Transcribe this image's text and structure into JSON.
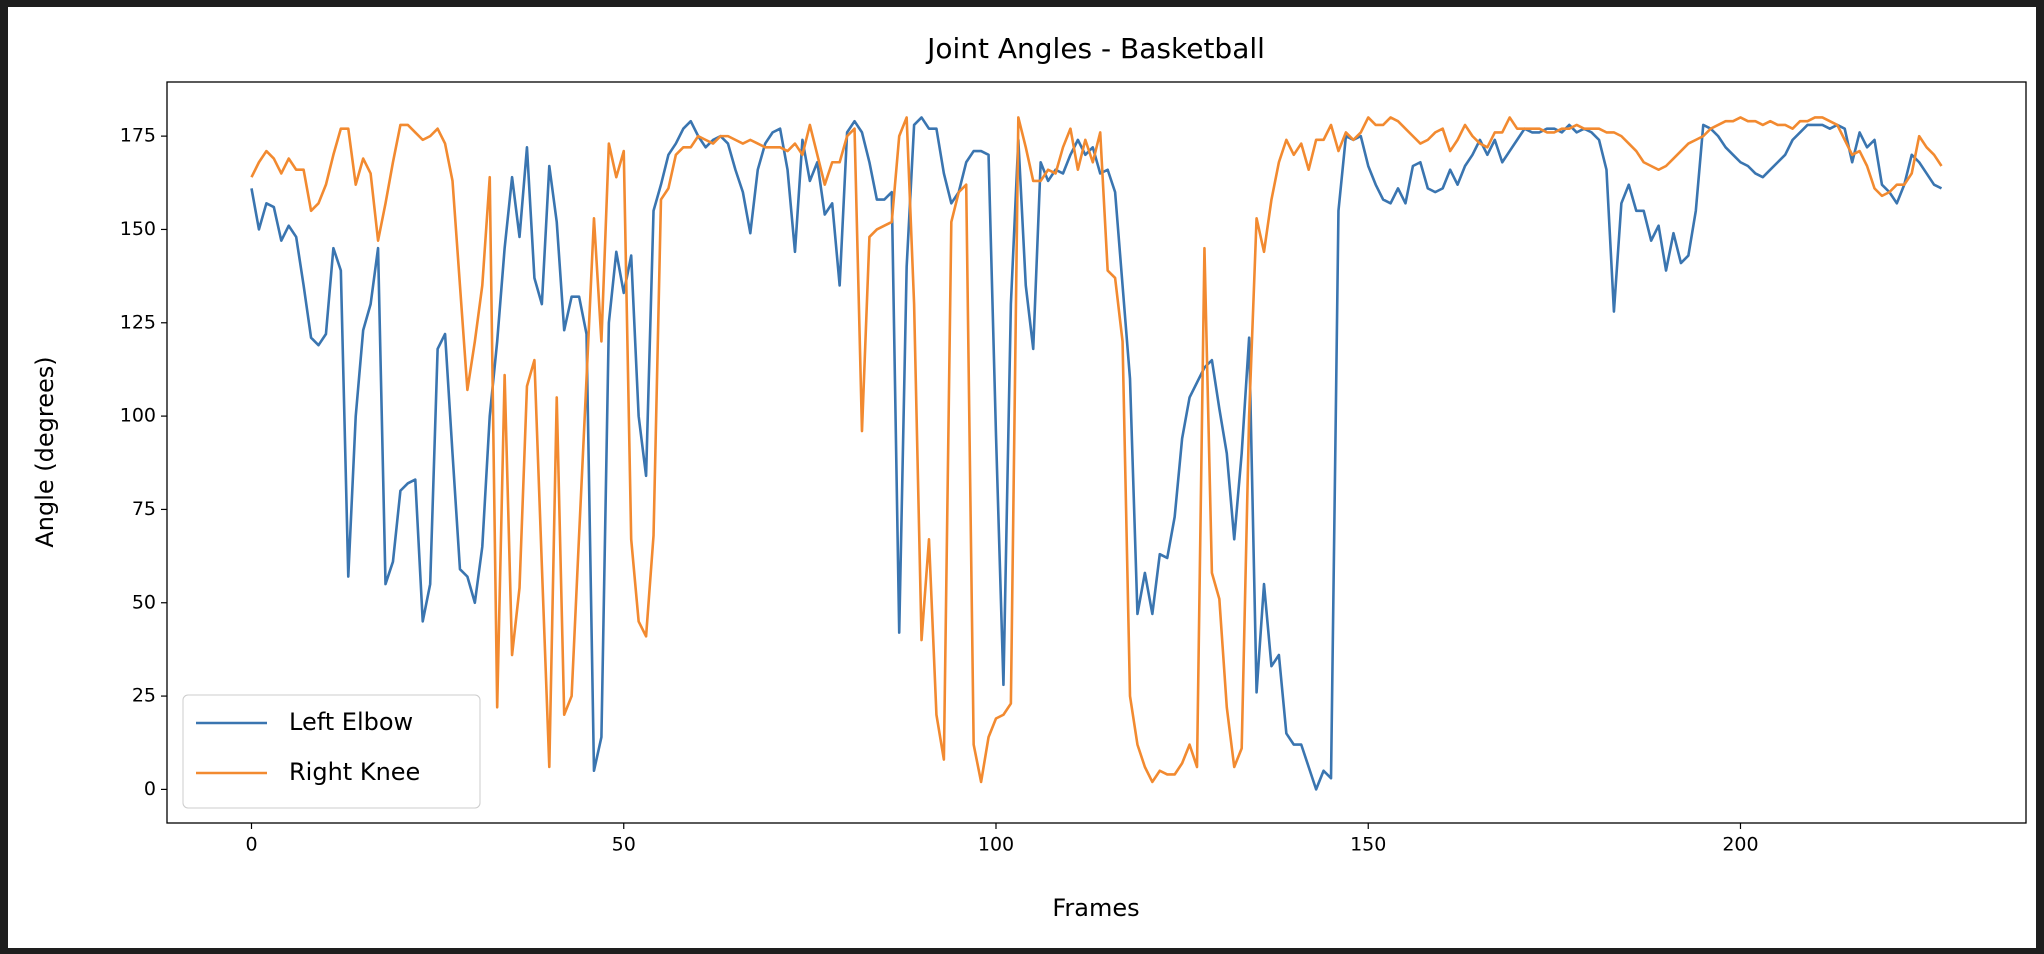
{
  "chart_data": {
    "type": "line",
    "title": "Joint Angles - Basketball",
    "x_label": "Frames",
    "y_label": "Angle (degrees)",
    "legend": "lower left",
    "grid": false,
    "xlim": [
      -11.35,
      238.35
    ],
    "xticks": [
      0,
      50,
      100,
      150,
      200
    ],
    "ylim": [
      -9,
      189.5
    ],
    "yticks": [
      0,
      25,
      50,
      75,
      100,
      125,
      150,
      175
    ],
    "x": [
      0,
      1,
      2,
      3,
      4,
      5,
      6,
      7,
      8,
      9,
      10,
      11,
      12,
      13,
      14,
      15,
      16,
      17,
      18,
      19,
      20,
      21,
      22,
      23,
      24,
      25,
      26,
      27,
      28,
      29,
      30,
      31,
      32,
      33,
      34,
      35,
      36,
      37,
      38,
      39,
      40,
      41,
      42,
      43,
      44,
      45,
      46,
      47,
      48,
      49,
      50,
      51,
      52,
      53,
      54,
      55,
      56,
      57,
      58,
      59,
      60,
      61,
      62,
      63,
      64,
      65,
      66,
      67,
      68,
      69,
      70,
      71,
      72,
      73,
      74,
      75,
      76,
      77,
      78,
      79,
      80,
      81,
      82,
      83,
      84,
      85,
      86,
      87,
      88,
      89,
      90,
      91,
      92,
      93,
      94,
      95,
      96,
      97,
      98,
      99,
      100,
      101,
      102,
      103,
      104,
      105,
      106,
      107,
      108,
      109,
      110,
      111,
      112,
      113,
      114,
      115,
      116,
      117,
      118,
      119,
      120,
      121,
      122,
      123,
      124,
      125,
      126,
      127,
      128,
      129,
      130,
      131,
      132,
      133,
      134,
      135,
      136,
      137,
      138,
      139,
      140,
      141,
      142,
      143,
      144,
      145,
      146,
      147,
      148,
      149,
      150,
      151,
      152,
      153,
      154,
      155,
      156,
      157,
      158,
      159,
      160,
      161,
      162,
      163,
      164,
      165,
      166,
      167,
      168,
      169,
      170,
      171,
      172,
      173,
      174,
      175,
      176,
      177,
      178,
      179,
      180,
      181,
      182,
      183,
      184,
      185,
      186,
      187,
      188,
      189,
      190,
      191,
      192,
      193,
      194,
      195,
      196,
      197,
      198,
      199,
      200,
      201,
      202,
      203,
      204,
      205,
      206,
      207,
      208,
      209,
      210,
      211,
      212,
      213,
      214,
      215,
      216,
      217,
      218,
      219,
      220,
      221,
      222,
      223,
      224,
      225,
      226,
      227
    ],
    "series": [
      {
        "name": "Left Elbow",
        "color": "#3a75b0",
        "values": [
          161,
          150,
          157,
          156,
          147,
          151,
          148,
          135,
          121,
          119,
          122,
          145,
          139,
          57,
          100,
          123,
          130,
          145,
          55,
          61,
          80,
          82,
          83,
          45,
          55,
          118,
          122,
          90,
          59,
          57,
          50,
          65,
          100,
          120,
          145,
          164,
          148,
          172,
          137,
          130,
          167,
          152,
          123,
          132,
          132,
          122,
          5,
          14,
          125,
          144,
          133,
          143,
          100,
          84,
          155,
          162,
          170,
          173,
          177,
          179,
          175,
          172,
          174,
          175,
          173,
          166,
          160,
          149,
          166,
          173,
          176,
          177,
          166,
          144,
          174,
          163,
          168,
          154,
          157,
          135,
          176,
          179,
          176,
          168,
          158,
          158,
          160,
          42,
          140,
          178,
          180,
          177,
          177,
          165,
          157,
          160,
          168,
          171,
          171,
          170,
          95,
          28,
          130,
          174,
          135,
          118,
          168,
          163,
          166,
          165,
          170,
          174,
          170,
          172,
          165,
          166,
          160,
          135,
          110,
          47,
          58,
          47,
          63,
          62,
          73,
          94,
          105,
          109,
          113,
          115,
          102,
          90,
          67,
          90,
          121,
          26,
          55,
          33,
          36,
          15,
          12,
          12,
          6,
          0,
          5,
          3,
          155,
          175,
          174,
          175,
          167,
          162,
          158,
          157,
          161,
          157,
          167,
          168,
          161,
          160,
          161,
          166,
          162,
          167,
          170,
          174,
          170,
          174,
          168,
          171,
          174,
          177,
          176,
          176,
          177,
          177,
          176,
          178,
          176,
          177,
          176,
          174,
          166,
          128,
          157,
          162,
          155,
          155,
          147,
          151,
          139,
          149,
          141,
          143,
          155,
          178,
          177,
          175,
          172,
          170,
          168,
          167,
          165,
          164,
          166,
          168,
          170,
          174,
          176,
          178,
          178,
          178,
          177,
          178,
          177,
          168,
          176,
          172,
          174,
          162,
          160,
          157,
          162,
          170,
          168,
          165,
          162,
          161
        ]
      },
      {
        "name": "Right Knee",
        "color": "#f28a30",
        "values": [
          164,
          168,
          171,
          169,
          165,
          169,
          166,
          166,
          155,
          157,
          162,
          170,
          177,
          177,
          162,
          169,
          165,
          147,
          157,
          168,
          178,
          178,
          176,
          174,
          175,
          177,
          173,
          163,
          135,
          107,
          120,
          135,
          164,
          22,
          111,
          36,
          54,
          108,
          115,
          60,
          6,
          105,
          20,
          25,
          68,
          110,
          153,
          120,
          173,
          164,
          171,
          67,
          45,
          41,
          68,
          158,
          161,
          170,
          172,
          172,
          175,
          174,
          173,
          175,
          175,
          174,
          173,
          174,
          173,
          172,
          172,
          172,
          171,
          173,
          170,
          178,
          170,
          162,
          168,
          168,
          175,
          177,
          96,
          148,
          150,
          151,
          152,
          175,
          180,
          130,
          40,
          67,
          20,
          8,
          152,
          160,
          162,
          12,
          2,
          14,
          19,
          20,
          23,
          180,
          172,
          163,
          163,
          166,
          165,
          172,
          177,
          166,
          174,
          168,
          176,
          139,
          137,
          120,
          25,
          12,
          6,
          2,
          5,
          4,
          4,
          7,
          12,
          6,
          145,
          58,
          51,
          22,
          6,
          11,
          100,
          153,
          144,
          158,
          168,
          174,
          170,
          173,
          166,
          174,
          174,
          178,
          171,
          176,
          174,
          176,
          180,
          178,
          178,
          180,
          179,
          177,
          175,
          173,
          174,
          176,
          177,
          171,
          174,
          178,
          175,
          173,
          172,
          176,
          176,
          180,
          177,
          177,
          177,
          177,
          176,
          176,
          177,
          177,
          178,
          177,
          177,
          177,
          176,
          176,
          175,
          173,
          171,
          168,
          167,
          166,
          167,
          169,
          171,
          173,
          174,
          175,
          177,
          178,
          179,
          179,
          180,
          179,
          179,
          178,
          179,
          178,
          178,
          177,
          179,
          179,
          180,
          180,
          179,
          178,
          174,
          170,
          171,
          167,
          161,
          159,
          160,
          162,
          162,
          165,
          175,
          172,
          170,
          167
        ]
      }
    ]
  }
}
